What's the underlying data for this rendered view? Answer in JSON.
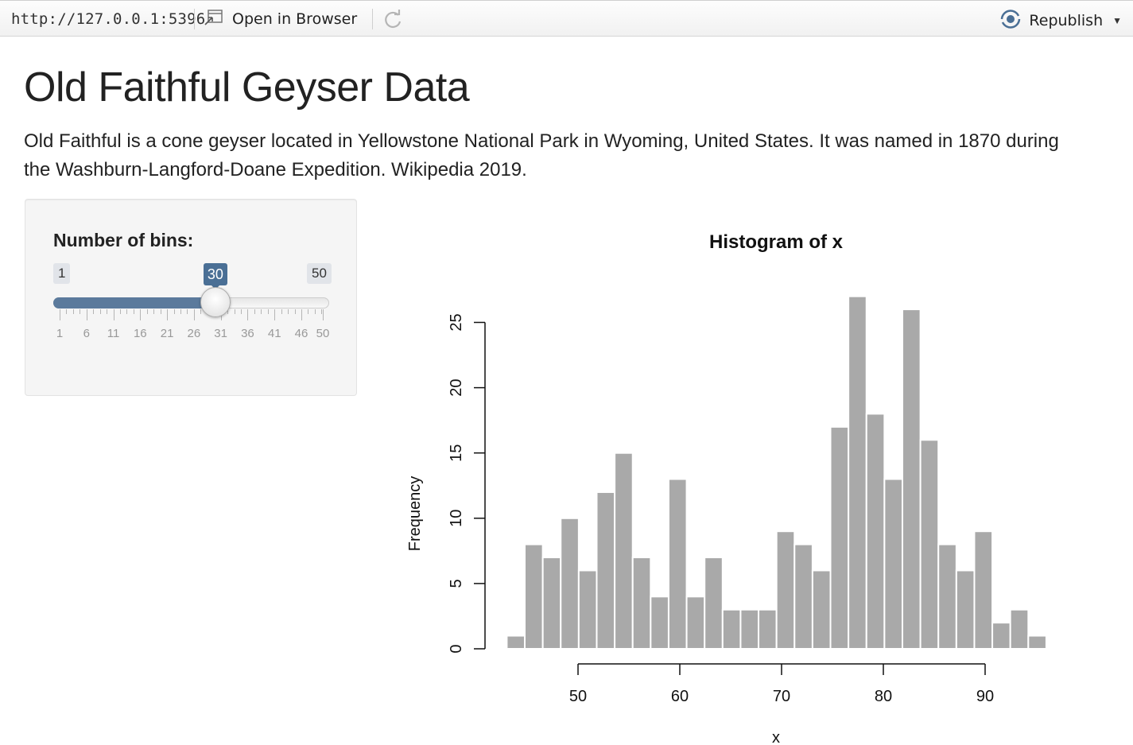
{
  "toolbar": {
    "url": "http://127.0.0.1:5396",
    "open_in_browser": "Open in Browser",
    "republish": "Republish",
    "icons": [
      "open-browser-icon",
      "refresh-icon",
      "republish-icon",
      "caret-down-icon"
    ]
  },
  "page": {
    "title": "Old Faithful Geyser Data",
    "description": "Old Faithful is a cone geyser located in Yellowstone National Park in Wyoming, United States. It was named in 1870 during the Washburn-Langford-Doane Expedition. Wikipedia 2019."
  },
  "sidebar": {
    "label": "Number of bins:",
    "slider": {
      "min_label": "1",
      "max_label": "50",
      "value_label": "30",
      "min": 1,
      "max": 50,
      "value": 30,
      "tick_labels": [
        "1",
        "6",
        "11",
        "16",
        "21",
        "26",
        "31",
        "36",
        "41",
        "46",
        "50"
      ],
      "fill_color": "#5b7a9c"
    }
  },
  "chart_data": {
    "type": "bar",
    "title": "Histogram of x",
    "xlabel": "x",
    "ylabel": "Frequency",
    "bar_color": "#a9a9a9",
    "x_ticks": [
      "50",
      "60",
      "70",
      "80",
      "90"
    ],
    "y_ticks": [
      "0",
      "5",
      "10",
      "15",
      "20",
      "25"
    ],
    "ylim": [
      0,
      27
    ],
    "bin_start": 43.0,
    "bin_width": 1.767,
    "values": [
      1,
      8,
      7,
      10,
      6,
      12,
      15,
      7,
      4,
      13,
      4,
      7,
      3,
      3,
      3,
      9,
      8,
      6,
      17,
      27,
      18,
      13,
      26,
      16,
      8,
      6,
      9,
      2,
      3,
      1
    ]
  }
}
